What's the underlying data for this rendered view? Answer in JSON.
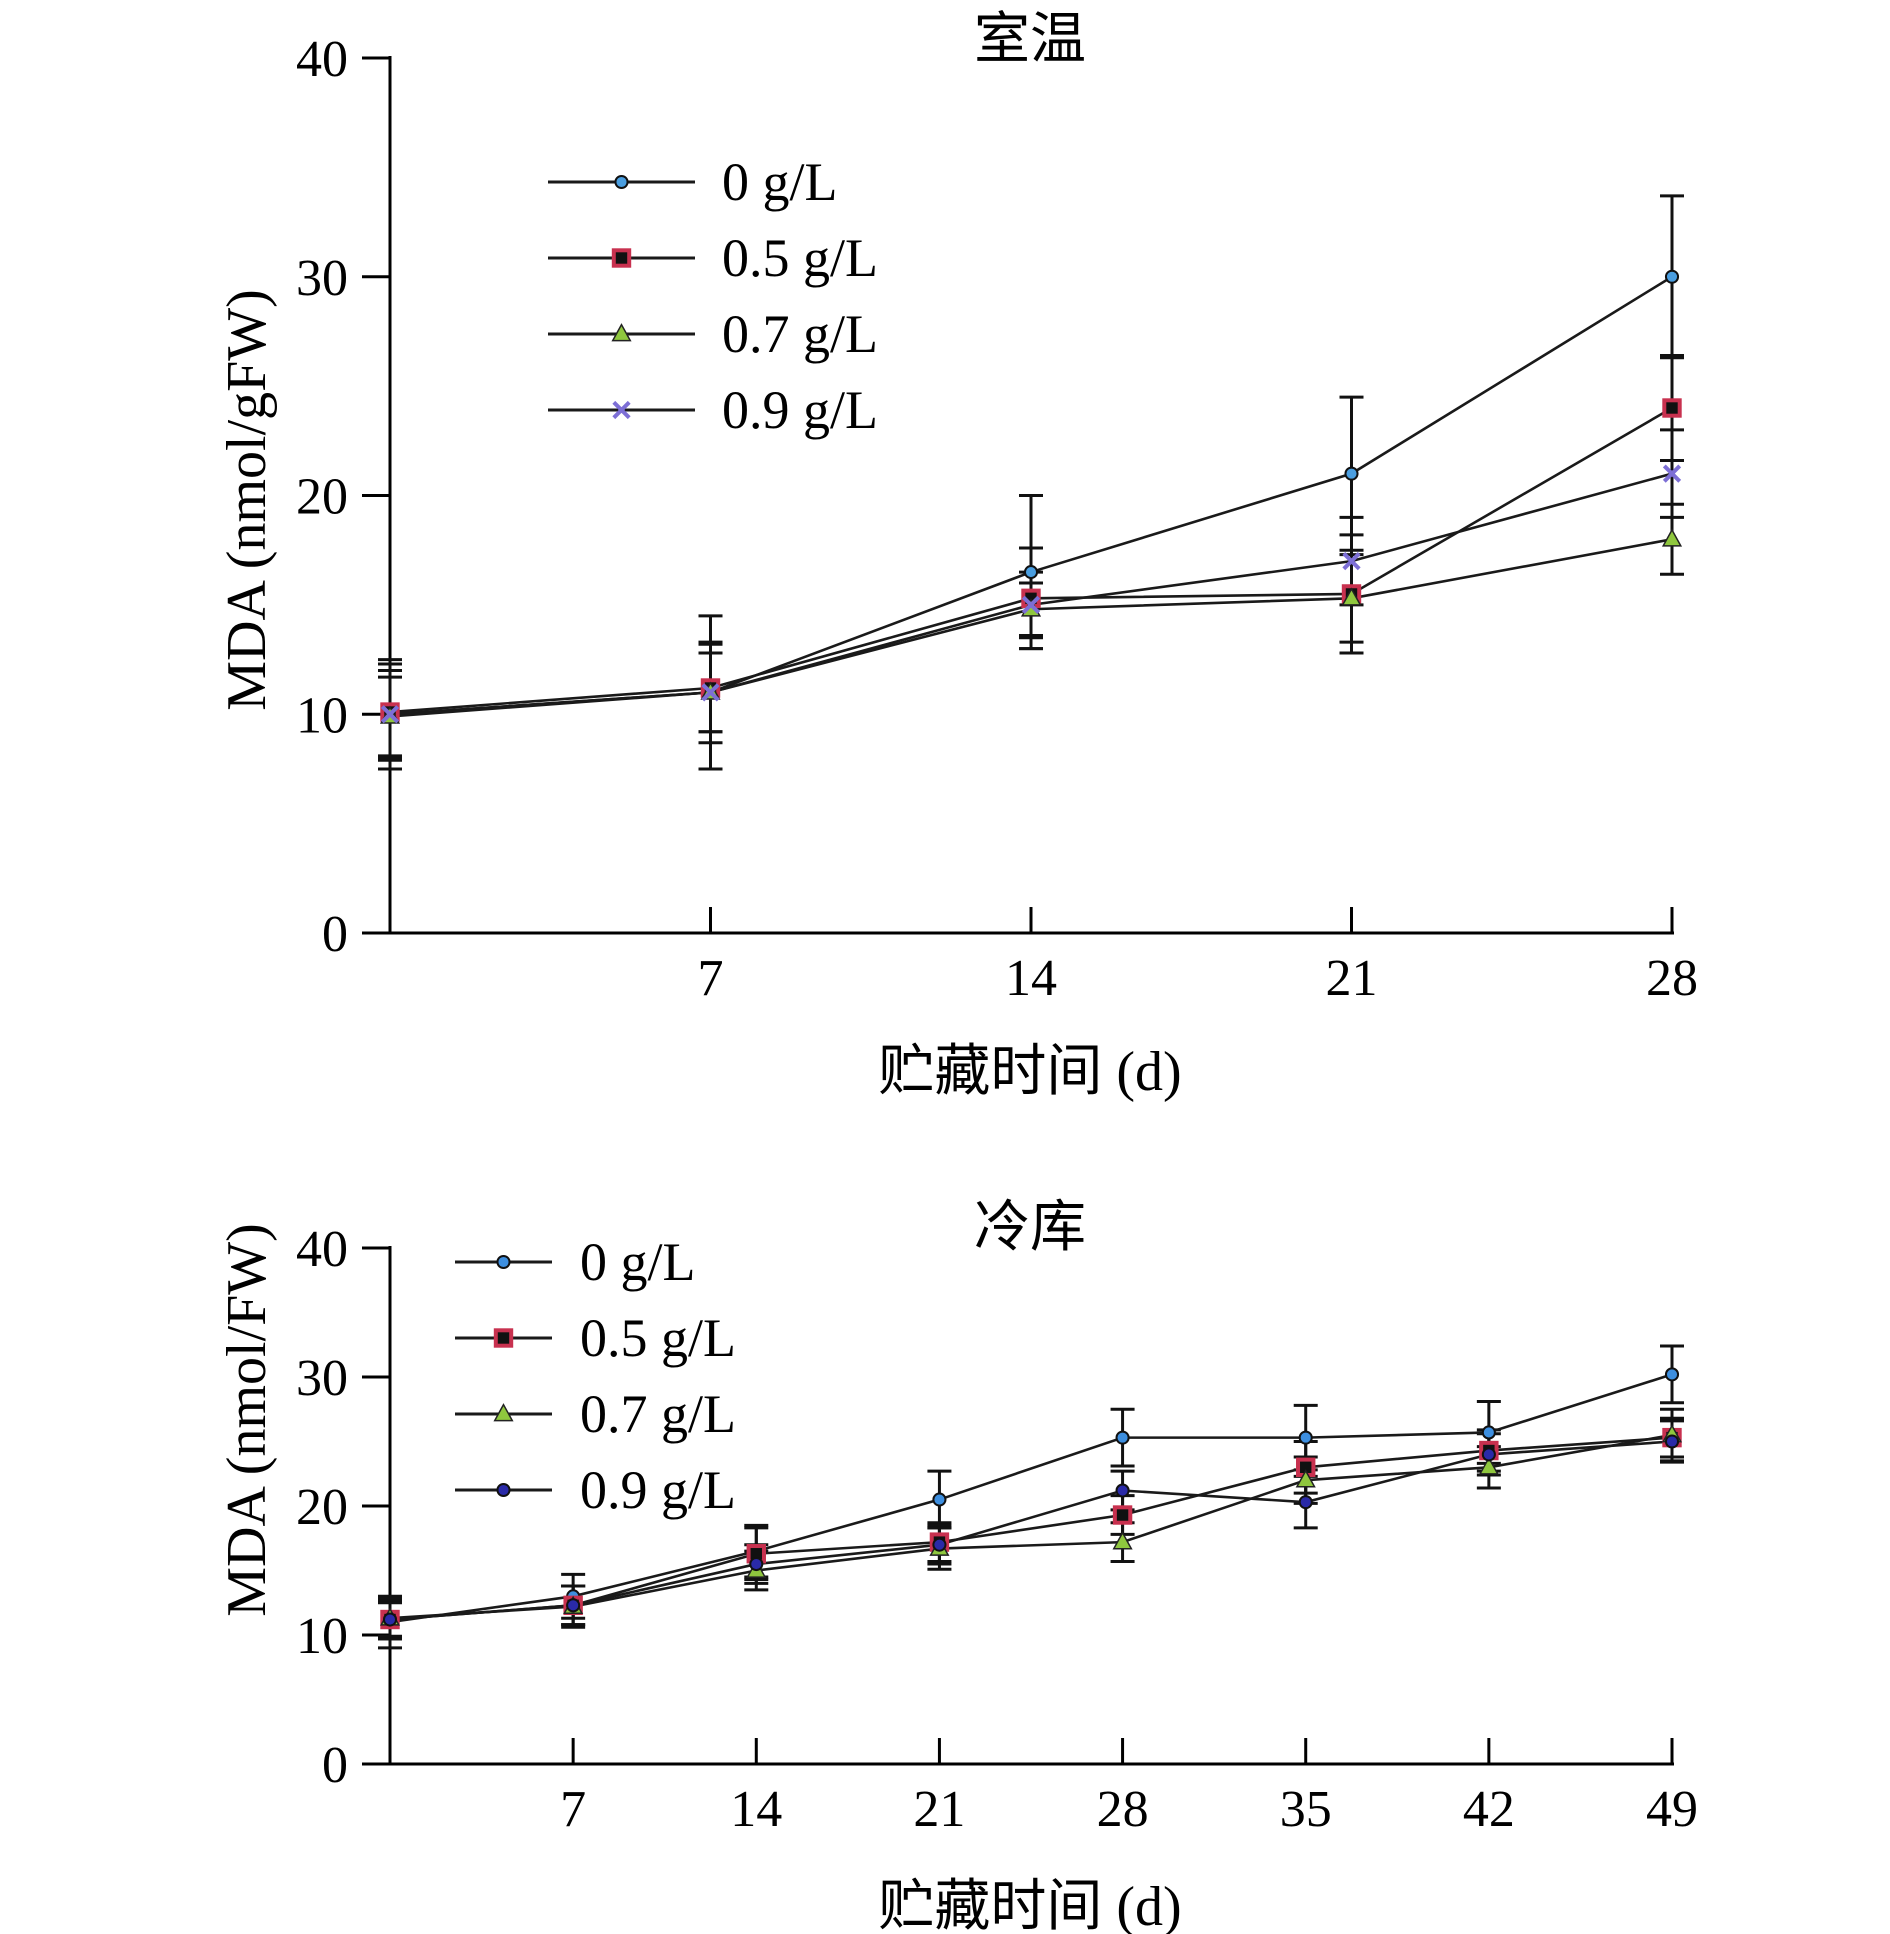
{
  "chart_data": [
    {
      "type": "line",
      "title": "室温",
      "xlabel": "贮藏时间 (d)",
      "ylabel": "MDA (nmol/gFW)",
      "x": [
        0,
        7,
        14,
        21,
        28
      ],
      "xticklabels": [
        "",
        "7",
        "14",
        "21",
        "28"
      ],
      "ylim": [
        0,
        40
      ],
      "yticks": [
        0,
        10,
        20,
        30,
        40
      ],
      "legend_position": "upper-left",
      "series": [
        {
          "name": "0 g/L",
          "marker": "circle",
          "color": "#4a9ee0",
          "values": [
            10.0,
            11.0,
            16.5,
            21.0,
            30.0
          ],
          "error": [
            2.5,
            3.5,
            3.5,
            3.5,
            3.7
          ]
        },
        {
          "name": "0.5 g/L",
          "marker": "square",
          "color": "#c8314f",
          "values": [
            10.1,
            11.2,
            15.3,
            15.5,
            24.0
          ],
          "error": [
            2.2,
            2.0,
            2.3,
            2.7,
            2.4
          ]
        },
        {
          "name": "0.7 g/L",
          "marker": "triangle",
          "color": "#8fc73e",
          "values": [
            9.9,
            11.0,
            14.8,
            15.3,
            18.0
          ],
          "error": [
            1.8,
            1.8,
            1.2,
            2.0,
            1.6
          ]
        },
        {
          "name": "0.9 g/L",
          "marker": "cross",
          "color": "#7d6fd6",
          "values": [
            10.0,
            11.0,
            15.0,
            17.0,
            21.0
          ],
          "error": [
            2.0,
            2.3,
            1.5,
            2.0,
            2.0
          ]
        }
      ]
    },
    {
      "type": "line",
      "title": "冷库",
      "xlabel": "贮藏时间 (d)",
      "ylabel": "MDA (nmol/FW)",
      "x": [
        0,
        7,
        14,
        21,
        28,
        35,
        42,
        49
      ],
      "xticklabels": [
        "",
        "7",
        "14",
        "21",
        "28",
        "35",
        "42",
        "49"
      ],
      "ylim": [
        0,
        40
      ],
      "yticks": [
        0,
        10,
        20,
        30,
        40
      ],
      "legend_position": "upper-left",
      "series": [
        {
          "name": "0 g/L",
          "marker": "circle",
          "color": "#3d8fe0",
          "values": [
            11.0,
            13.0,
            16.5,
            20.5,
            25.3,
            25.3,
            25.7,
            30.2
          ],
          "error": [
            2.0,
            1.7,
            2.0,
            2.2,
            2.2,
            2.5,
            2.4,
            2.2
          ]
        },
        {
          "name": "0.5 g/L",
          "marker": "square",
          "color": "#c8314f",
          "values": [
            11.2,
            12.3,
            16.3,
            17.2,
            19.3,
            23.0,
            24.3,
            25.3
          ],
          "error": [
            1.5,
            1.5,
            2.0,
            1.5,
            1.5,
            2.0,
            1.6,
            1.5
          ]
        },
        {
          "name": "0.7 g/L",
          "marker": "triangle",
          "color": "#8fc73e",
          "values": [
            11.3,
            12.2,
            15.0,
            16.7,
            17.2,
            22.0,
            23.0,
            25.5
          ],
          "error": [
            1.6,
            1.6,
            1.5,
            1.6,
            1.5,
            1.8,
            1.6,
            2.0
          ]
        },
        {
          "name": "0.9 g/L",
          "marker": "circle",
          "color": "#2a2aa8",
          "values": [
            11.2,
            12.3,
            15.5,
            17.0,
            21.2,
            20.3,
            24.0,
            25.0
          ],
          "error": [
            1.3,
            1.5,
            1.5,
            1.5,
            1.5,
            2.0,
            1.6,
            1.6
          ]
        }
      ]
    }
  ]
}
